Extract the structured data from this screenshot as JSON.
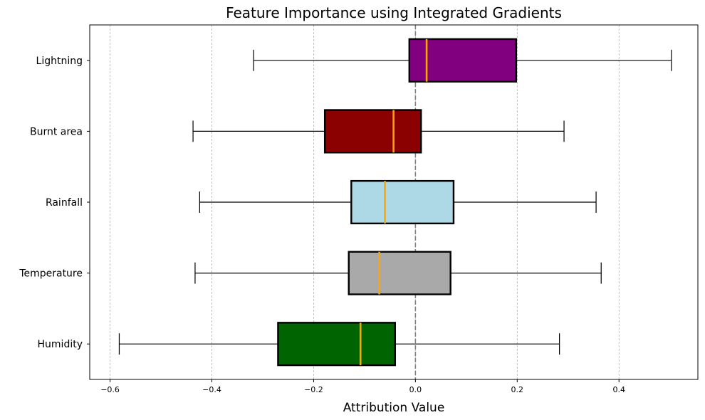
{
  "chart_data": {
    "type": "boxplot",
    "orientation": "horizontal",
    "title": "Feature Importance using Integrated Gradients",
    "xlabel": "Attribution Value",
    "ylabel": "",
    "xlim": [
      -0.64,
      0.555
    ],
    "xticks": [
      -0.6,
      -0.4,
      -0.2,
      0.0,
      0.2,
      0.4
    ],
    "xtick_labels": [
      "−0.6",
      "−0.4",
      "−0.2",
      "0.0",
      "0.2",
      "0.4"
    ],
    "grid": "x-dashed",
    "reference_line": 0.0,
    "categories": [
      "Lightning",
      "Burnt area",
      "Rainfall",
      "Temperature",
      "Humidity"
    ],
    "boxes": [
      {
        "name": "Lightning",
        "whisker_low": -0.318,
        "q1": -0.012,
        "median": 0.022,
        "q3": 0.198,
        "whisker_high": 0.503,
        "color": "#800080"
      },
      {
        "name": "Burnt area",
        "whisker_low": -0.437,
        "q1": -0.178,
        "median": -0.043,
        "q3": 0.011,
        "whisker_high": 0.292,
        "color": "#8b0000"
      },
      {
        "name": "Rainfall",
        "whisker_low": -0.424,
        "q1": -0.126,
        "median": -0.06,
        "q3": 0.075,
        "whisker_high": 0.355,
        "color": "#add8e6"
      },
      {
        "name": "Temperature",
        "whisker_low": -0.433,
        "q1": -0.131,
        "median": -0.071,
        "q3": 0.069,
        "whisker_high": 0.365,
        "color": "#a9a9a9"
      },
      {
        "name": "Humidity",
        "whisker_low": -0.582,
        "q1": -0.27,
        "median": -0.108,
        "q3": -0.04,
        "whisker_high": 0.283,
        "color": "#006400"
      }
    ],
    "median_color": "#ffa500"
  }
}
